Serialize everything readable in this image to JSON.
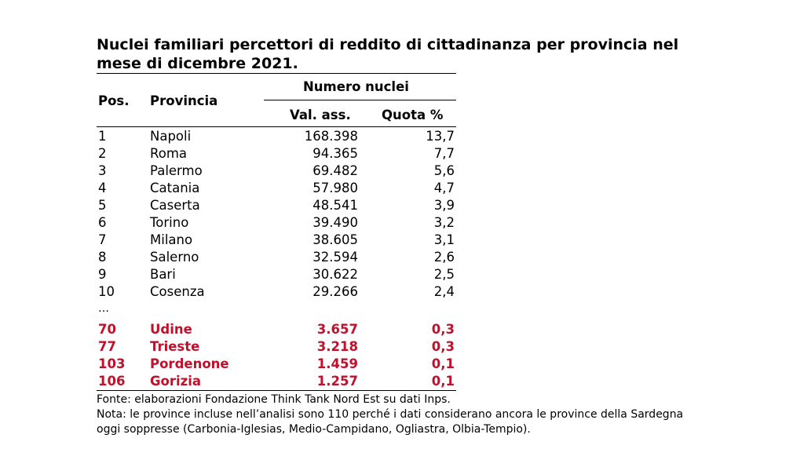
{
  "title": "Nuclei familiari percettori di reddito di cittadinanza per provincia nel mese di dicembre 2021.",
  "header": {
    "pos": "Pos.",
    "provincia": "Provincia",
    "group": "Numero nuclei",
    "val": "Val. ass.",
    "quota": "Quota %"
  },
  "rows": [
    {
      "pos": "1",
      "provincia": "Napoli",
      "val": "168.398",
      "quota": "13,7"
    },
    {
      "pos": "2",
      "provincia": "Roma",
      "val": "94.365",
      "quota": "7,7"
    },
    {
      "pos": "3",
      "provincia": "Palermo",
      "val": "69.482",
      "quota": "5,6"
    },
    {
      "pos": "4",
      "provincia": "Catania",
      "val": "57.980",
      "quota": "4,7"
    },
    {
      "pos": "5",
      "provincia": "Caserta",
      "val": "48.541",
      "quota": "3,9"
    },
    {
      "pos": "6",
      "provincia": "Torino",
      "val": "39.490",
      "quota": "3,2"
    },
    {
      "pos": "7",
      "provincia": "Milano",
      "val": "38.605",
      "quota": "3,1"
    },
    {
      "pos": "8",
      "provincia": "Salerno",
      "val": "32.594",
      "quota": "2,6"
    },
    {
      "pos": "9",
      "provincia": "Bari",
      "val": "30.622",
      "quota": "2,5"
    },
    {
      "pos": "10",
      "provincia": "Cosenza",
      "val": "29.266",
      "quota": "2,4"
    }
  ],
  "ellipsis": "…",
  "highlighted_rows": [
    {
      "pos": "70",
      "provincia": "Udine",
      "val": "3.657",
      "quota": "0,3"
    },
    {
      "pos": "77",
      "provincia": "Trieste",
      "val": "3.218",
      "quota": "0,3"
    },
    {
      "pos": "103",
      "provincia": "Pordenone",
      "val": "1.459",
      "quota": "0,1"
    },
    {
      "pos": "106",
      "provincia": "Gorizia",
      "val": "1.257",
      "quota": "0,1"
    }
  ],
  "highlight_color": "#c0102b",
  "notes": {
    "fonte": "Fonte: elaborazioni Fondazione Think Tank Nord Est su dati Inps.",
    "nota1": "Nota: le province incluse nell’analisi sono 110 perché i dati considerano ancora le province della Sardegna",
    "nota2": "oggi soppresse (Carbonia-Iglesias, Medio-Campidano, Ogliastra, Olbia-Tempio)."
  }
}
